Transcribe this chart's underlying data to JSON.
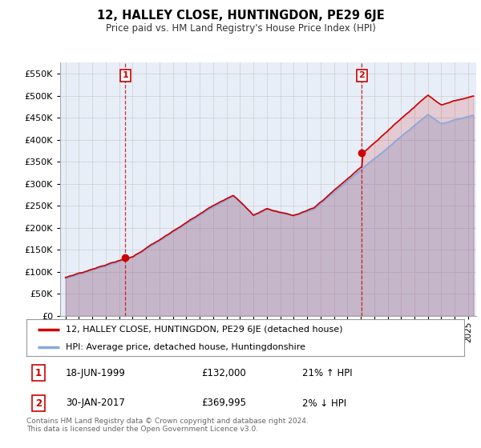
{
  "title": "12, HALLEY CLOSE, HUNTINGDON, PE29 6JE",
  "subtitle": "Price paid vs. HM Land Registry's House Price Index (HPI)",
  "legend_line1": "12, HALLEY CLOSE, HUNTINGDON, PE29 6JE (detached house)",
  "legend_line2": "HPI: Average price, detached house, Huntingdonshire",
  "sale1_date": "18-JUN-1999",
  "sale1_price": "£132,000",
  "sale1_hpi": "21% ↑ HPI",
  "sale2_date": "30-JAN-2017",
  "sale2_price": "£369,995",
  "sale2_hpi": "2% ↓ HPI",
  "footer": "Contains HM Land Registry data © Crown copyright and database right 2024.\nThis data is licensed under the Open Government Licence v3.0.",
  "red_color": "#cc0000",
  "blue_color": "#88aadd",
  "chart_bg": "#e8eef8",
  "background_color": "#ffffff",
  "grid_color": "#cccccc",
  "ylim": [
    0,
    575000
  ],
  "yticks": [
    0,
    50000,
    100000,
    150000,
    200000,
    250000,
    300000,
    350000,
    400000,
    450000,
    500000,
    550000
  ],
  "sale1_year": 1999.46,
  "sale1_value": 132000,
  "sale2_year": 2017.08,
  "sale2_value": 369995
}
